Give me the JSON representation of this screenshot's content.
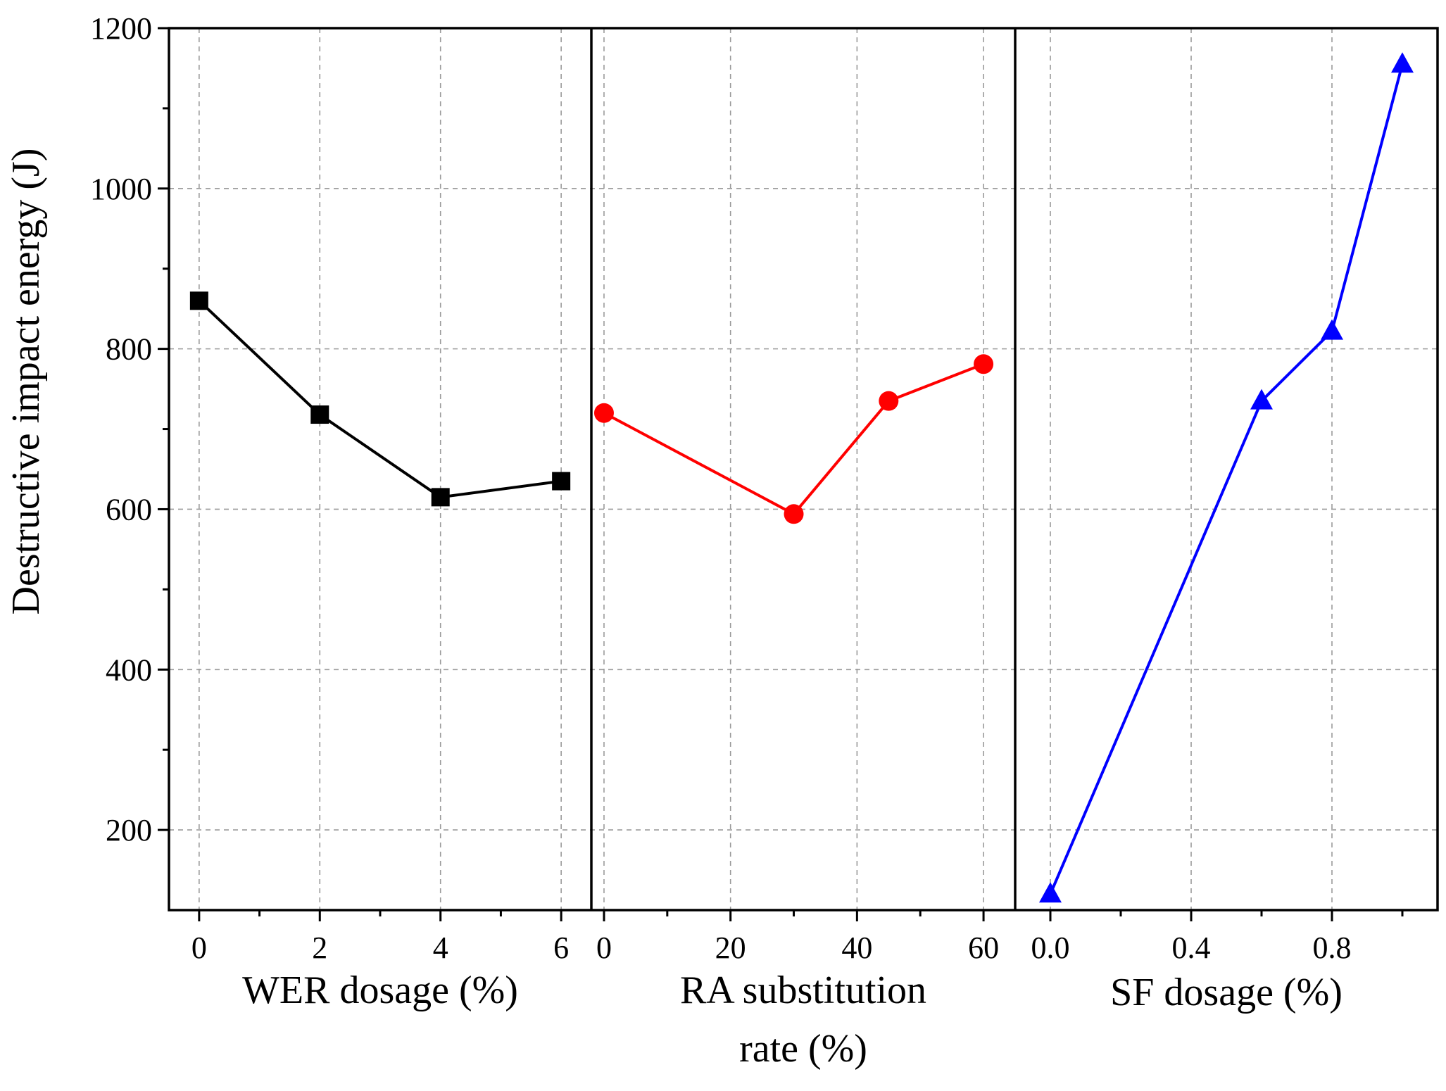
{
  "chart_data": {
    "type": "line",
    "ylabel": "Destructive impact energy (J)",
    "ylim": [
      100,
      1200
    ],
    "yticks": [
      200,
      400,
      600,
      800,
      1000,
      1200
    ],
    "grid": true,
    "panels": [
      {
        "xlabel": "WER dosage (%)",
        "xlim": [
          -0.5,
          6.5
        ],
        "xticks": [
          0,
          2,
          4,
          6
        ],
        "xtick_labels": [
          "0",
          "2",
          "4",
          "6"
        ],
        "series": [
          {
            "x": [
              0,
              2,
              4,
              6
            ],
            "y": [
              860,
              718,
              615,
              635
            ],
            "color": "#000000",
            "marker": "square"
          }
        ]
      },
      {
        "xlabel": "RA substitution rate (%)",
        "xlim": [
          -2,
          65
        ],
        "xticks": [
          0,
          20,
          40,
          60
        ],
        "xtick_labels": [
          "0",
          "20",
          "40",
          "60"
        ],
        "series": [
          {
            "x": [
              0,
              30,
              45,
              60
            ],
            "y": [
              720,
              594,
              735,
              781
            ],
            "color": "#ff0000",
            "marker": "circle"
          }
        ]
      },
      {
        "xlabel": "SF dosage (%)",
        "xlim": [
          -0.1,
          1.1
        ],
        "xticks": [
          0.0,
          0.4,
          0.8
        ],
        "xtick_labels": [
          "0.0",
          "0.4",
          "0.8"
        ],
        "series": [
          {
            "x": [
              0.0,
              0.6,
              0.8,
              1.0
            ],
            "y": [
              120,
              735,
              822,
              1155
            ],
            "color": "#0000ff",
            "marker": "triangle"
          }
        ]
      }
    ]
  }
}
